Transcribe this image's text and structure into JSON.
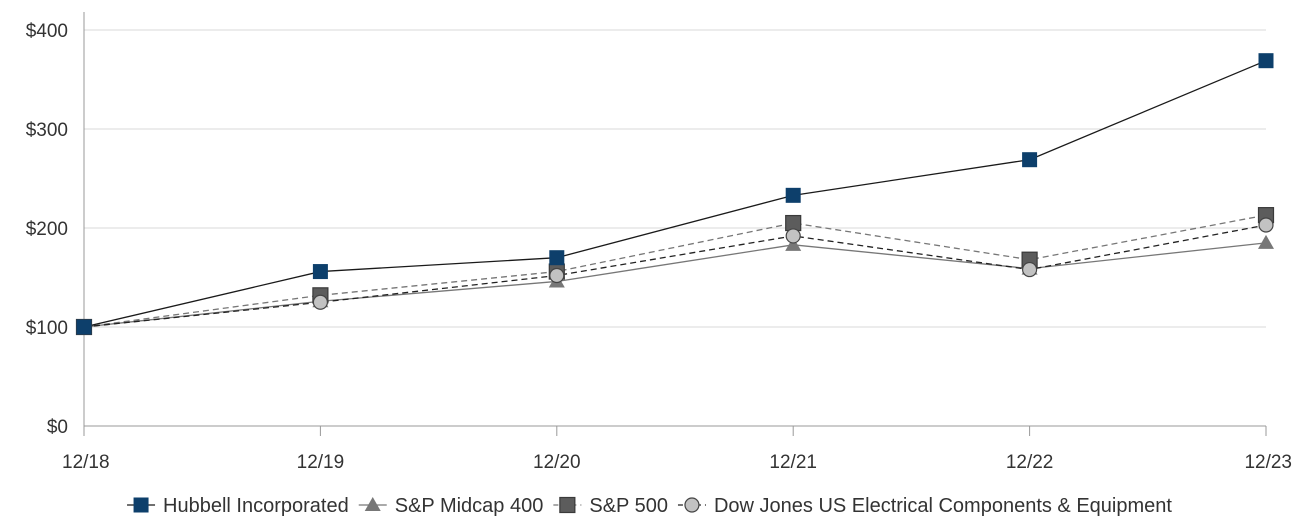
{
  "colors": {
    "hubbell": "#0d3f6b",
    "midcap": "#777777",
    "sp500": "#5c5c5c",
    "dowjones": "#c2c2c2",
    "gridline": "#d9d9d9",
    "axis": "#999999",
    "text": "#333333"
  },
  "chart_data": {
    "type": "line",
    "title": "",
    "xlabel": "",
    "ylabel": "",
    "categories": [
      "12/18",
      "12/19",
      "12/20",
      "12/21",
      "12/22",
      "12/23"
    ],
    "ylim": [
      0,
      400
    ],
    "y_ticks": [
      0,
      100,
      200,
      300,
      400
    ],
    "y_tick_labels": [
      "$0",
      "$100",
      "$200",
      "$300",
      "$400"
    ],
    "grid": "horizontal",
    "legend_position": "bottom",
    "series": [
      {
        "name": "Hubbell Incorporated",
        "values": [
          100,
          156,
          170,
          233,
          269,
          369
        ],
        "marker": "square",
        "line_style": "solid",
        "color_key": "hubbell"
      },
      {
        "name": "S&P Midcap 400",
        "values": [
          100,
          126,
          146,
          183,
          159,
          185
        ],
        "marker": "triangle",
        "line_style": "solid",
        "color_key": "midcap"
      },
      {
        "name": "S&P 500",
        "values": [
          100,
          132,
          156,
          205,
          168,
          213
        ],
        "marker": "square",
        "line_style": "dashed",
        "color_key": "sp500"
      },
      {
        "name": "Dow Jones US Electrical Components & Equipment",
        "values": [
          100,
          125,
          152,
          192,
          158,
          203
        ],
        "marker": "circle",
        "line_style": "dashed",
        "color_key": "dowjones"
      }
    ]
  }
}
